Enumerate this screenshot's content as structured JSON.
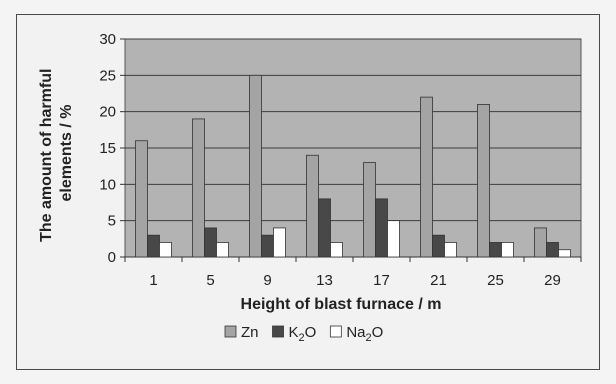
{
  "chart_data": {
    "type": "bar",
    "title": "",
    "xlabel": "Height of blast furnace / m",
    "ylabel_line1": "The amount of harmful",
    "ylabel_line2": "elements / %",
    "categories": [
      "1",
      "5",
      "9",
      "13",
      "17",
      "21",
      "25",
      "29"
    ],
    "ylim": [
      0,
      30
    ],
    "yticks": [
      0,
      5,
      10,
      15,
      20,
      25,
      30
    ],
    "grid": true,
    "legend_position": "bottom",
    "series": [
      {
        "name": "Zn",
        "name_main": "Zn",
        "name_sub": "",
        "name_tail": "",
        "color": "#a4a4a4",
        "values": [
          16,
          19,
          25,
          14,
          13,
          22,
          21,
          4
        ]
      },
      {
        "name": "K2O",
        "name_main": "K",
        "name_sub": "2",
        "name_tail": "O",
        "color": "#484848",
        "values": [
          3,
          4,
          3,
          8,
          8,
          3,
          2,
          2
        ]
      },
      {
        "name": "Na2O",
        "name_main": "Na",
        "name_sub": "2",
        "name_tail": "O",
        "color": "#ffffff",
        "values": [
          2,
          2,
          4,
          2,
          5,
          2,
          2,
          1
        ]
      }
    ],
    "plot_background": "#b3b3b3"
  }
}
